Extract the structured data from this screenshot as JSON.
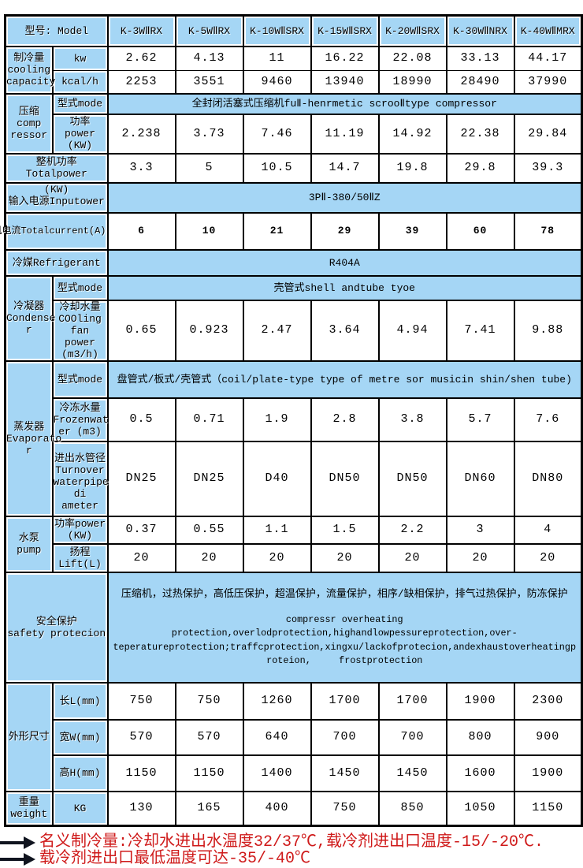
{
  "colors": {
    "cell_blue": "#a5d6f5",
    "border_black": "#000000",
    "note_red": "#cf1a1a",
    "arrow_dark": "#10141f"
  },
  "header": {
    "model_label": "型号: Model",
    "models": [
      "K-3WⅡRX",
      "K-5WⅡRX",
      "K-10WⅡSRX",
      "K-15WⅡSRX",
      "K-20WⅡSRX",
      "K-30WⅡNRX",
      "K-40WⅡMRX"
    ]
  },
  "sections": {
    "cooling": {
      "label": "制冷量\ncooling\ncapacity",
      "kw_label": "kw",
      "kw": [
        "2.62",
        "4.13",
        "11",
        "16.22",
        "22.08",
        "33.13",
        "44.17"
      ],
      "kcal_label": "kcal/h",
      "kcal": [
        "2253",
        "3551",
        "9460",
        "13940",
        "18990",
        "28490",
        "37990"
      ]
    },
    "compressor": {
      "label": "压缩\ncomp\nressor",
      "mode_label": "型式mode",
      "mode_value": "全封闭活塞式压缩机fuⅡ-henrmetic scrooⅡtype compressor",
      "power_label": "功率\npower\n(KW)",
      "power": [
        "2.238",
        "3.73",
        "7.46",
        "11.19",
        "14.92",
        "22.38",
        "29.84"
      ]
    },
    "total_power": {
      "label": "整机功率\nTotalpower",
      "values": [
        "3.3",
        "5",
        "10.5",
        "14.7",
        "19.8",
        "29.8",
        "39.3"
      ]
    },
    "input_power": {
      "label": "(KW)\n输入电源Inputower",
      "value": "3PⅡ-380/50ⅡZ"
    },
    "total_current": {
      "label": "整机电流Totalcurrent(A)",
      "values": [
        "6",
        "10",
        "21",
        "29",
        "39",
        "60",
        "78"
      ]
    },
    "refrigerant": {
      "label": "冷媒Refrigerant",
      "value": "R404A"
    },
    "condenser": {
      "label": "冷凝器\nCondense\nr",
      "mode_label": "型式mode",
      "mode_value": "壳管式shell andtube tyoe",
      "water_label": "冷却水量\nCOOling\nfan power\n(m3/h)",
      "water": [
        "0.65",
        "0.923",
        "2.47",
        "3.64",
        "4.94",
        "7.41",
        "9.88"
      ]
    },
    "evaporator": {
      "label": "蒸发器\nEvaporato\nr",
      "mode_label": "型式mode",
      "mode_value": "盘管式/板式/壳管式（coil/plate-type type of metre sor musicin shin/shen tube)",
      "frozen_label": "冷冻水量\nFrozenwat\ner (m3)",
      "frozen": [
        "0.5",
        "0.71",
        "1.9",
        "2.8",
        "3.8",
        "5.7",
        "7.6"
      ],
      "pipe_label": "进出水管径\nTurnover\nwaterpipe\ndi ameter",
      "pipe": [
        "DN25",
        "DN25",
        "D40",
        "DN50",
        "DN50",
        "DN60",
        "DN80"
      ]
    },
    "pump": {
      "label": "水泵\npump",
      "power_label": "功率power\n(KW)",
      "power": [
        "0.37",
        "0.55",
        "1.1",
        "1.5",
        "2.2",
        "3",
        "4"
      ],
      "lift_label": "扬程\nLift(L)",
      "lift": [
        "20",
        "20",
        "20",
        "20",
        "20",
        "20",
        "20"
      ]
    },
    "safety": {
      "label": "安全保护\nsafety protecion",
      "value_cn": "压缩机，过热保护，高低压保护，超温保护，流量保护，相序/缺相保护，排气过热保护，防冻保护",
      "value_en": "compressr overheating\nprotection,overlodprotection,highandlowpessureprotection,over-\nteperatureprotection;traffcprotection,xingxu/lackofprotecion,andexhaustoverheatingp\nroteion,     frostprotection"
    },
    "dimensions": {
      "label": "外形尺寸",
      "length_label": "长L(mm)",
      "length": [
        "750",
        "750",
        "1260",
        "1700",
        "1700",
        "1900",
        "2300"
      ],
      "width_label": "宽W(mm)",
      "width": [
        "570",
        "570",
        "640",
        "700",
        "700",
        "800",
        "900"
      ],
      "height_label": "高H(mm)",
      "height": [
        "1150",
        "1150",
        "1400",
        "1450",
        "1450",
        "1600",
        "1900"
      ]
    },
    "weight": {
      "label": "重量\nweight",
      "unit_label": "KG",
      "values": [
        "130",
        "165",
        "400",
        "750",
        "850",
        "1050",
        "1150"
      ]
    }
  },
  "footnotes": [
    "名义制冷量:冷却水进出水温度32/37℃,载冷剂进出口温度-15/-20℃.",
    "载冷剂进出口最低温度可达-35/-40℃"
  ]
}
